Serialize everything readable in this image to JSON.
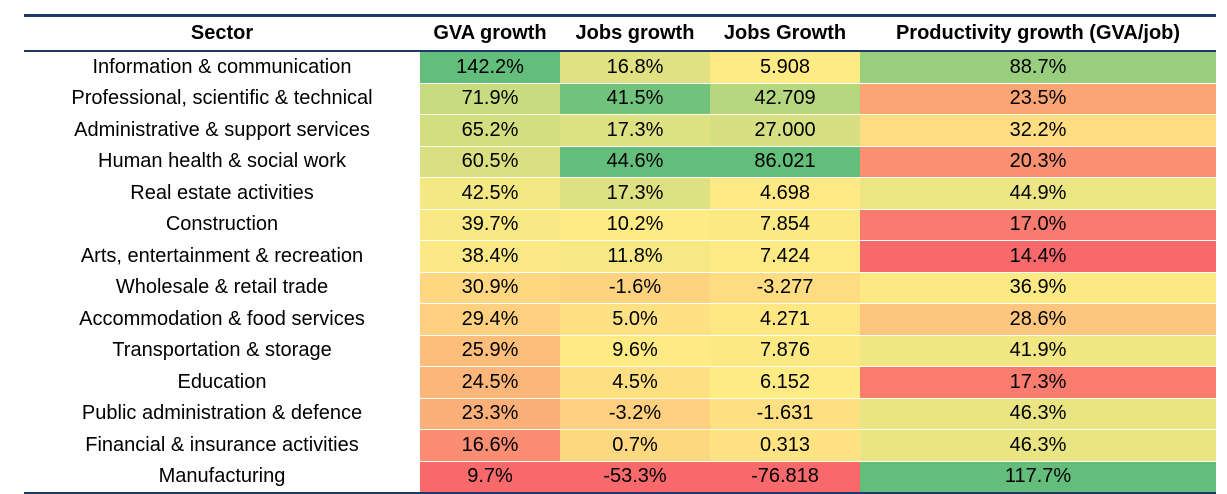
{
  "chart_data": {
    "type": "table",
    "columns": [
      "Sector",
      "GVA growth",
      "Jobs growth",
      "Jobs Growth",
      "Productivity growth (GVA/job)"
    ],
    "rows": [
      [
        "Information & communication",
        "142.2%",
        "16.8%",
        "5.908",
        "88.7%"
      ],
      [
        "Professional, scientific & technical",
        "71.9%",
        "41.5%",
        "42.709",
        "23.5%"
      ],
      [
        "Administrative & support services",
        "65.2%",
        "17.3%",
        "27.000",
        "32.2%"
      ],
      [
        "Human health & social work",
        "60.5%",
        "44.6%",
        "86.021",
        "20.3%"
      ],
      [
        "Real estate activities",
        "42.5%",
        "17.3%",
        "4.698",
        "44.9%"
      ],
      [
        "Construction",
        "39.7%",
        "10.2%",
        "7.854",
        "17.0%"
      ],
      [
        "Arts, entertainment & recreation",
        "38.4%",
        "11.8%",
        "7.424",
        "14.4%"
      ],
      [
        "Wholesale & retail trade",
        "30.9%",
        "-1.6%",
        "-3.277",
        "36.9%"
      ],
      [
        "Accommodation & food services",
        "29.4%",
        "5.0%",
        "4.271",
        "28.6%"
      ],
      [
        "Transportation & storage",
        "25.9%",
        "9.6%",
        "7.876",
        "41.9%"
      ],
      [
        "Education",
        "24.5%",
        "4.5%",
        "6.152",
        "17.3%"
      ],
      [
        "Public administration & defence",
        "23.3%",
        "-3.2%",
        "-1.631",
        "46.3%"
      ],
      [
        "Financial & insurance activities",
        "16.6%",
        "0.7%",
        "0.313",
        "46.3%"
      ],
      [
        "Manufacturing",
        "9.7%",
        "-53.3%",
        "-76.818",
        "117.7%"
      ]
    ],
    "color_scale": {
      "low": "#f8696b",
      "mid": "#ffeb84",
      "high": "#63be7b"
    }
  }
}
